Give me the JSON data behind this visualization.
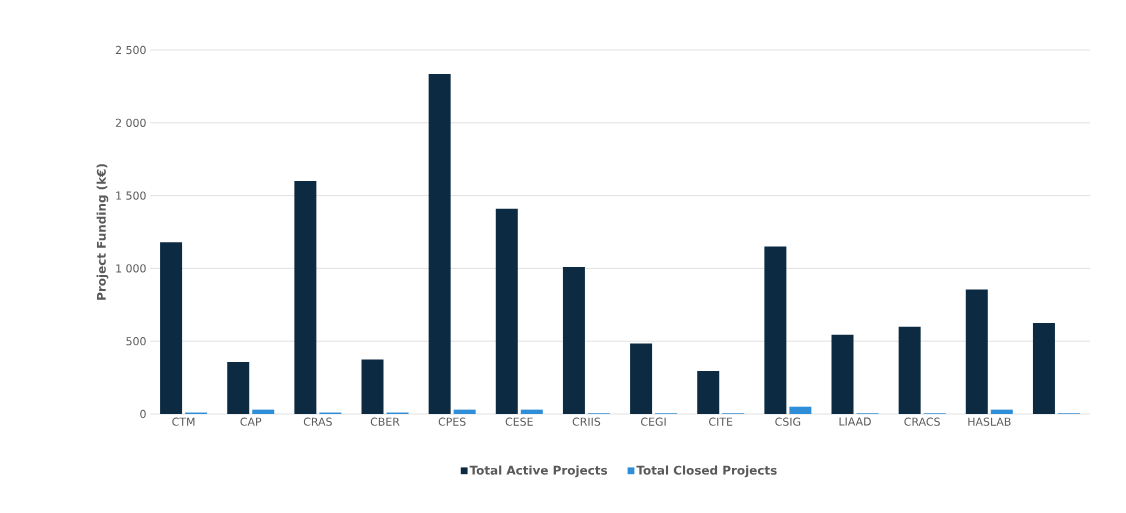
{
  "chart_data": {
    "type": "bar",
    "ylabel": "Project Funding (k€)",
    "categories": [
      "CTM",
      "CAP",
      "CRAS",
      "CBER",
      "CPES",
      "CESE",
      "CRIIS",
      "CEGI",
      "CITE",
      "CSIG",
      "LIAAD",
      "CRACS",
      "HASLAB",
      null
    ],
    "series": [
      {
        "name": "Total Active Projects",
        "color": "#0c2b42",
        "values": [
          1180,
          357,
          1600,
          375,
          2335,
          1410,
          1010,
          485,
          295,
          1150,
          545,
          600,
          855,
          625
        ]
      },
      {
        "name": "Total Closed Projects",
        "color": "#2e8fd8",
        "values": [
          10,
          30,
          10,
          10,
          30,
          30,
          5,
          5,
          5,
          50,
          5,
          5,
          30,
          5
        ]
      }
    ],
    "ylim": [
      0,
      2500
    ],
    "yticks": [
      0,
      500,
      {
        "value": 1000,
        "label": "1 000"
      },
      {
        "value": 1500,
        "label": "1 500"
      },
      {
        "value": 2000,
        "label": "2 000"
      },
      {
        "value": 2500,
        "label": "2 500"
      }
    ],
    "grid": "y",
    "legend": "bottom"
  }
}
